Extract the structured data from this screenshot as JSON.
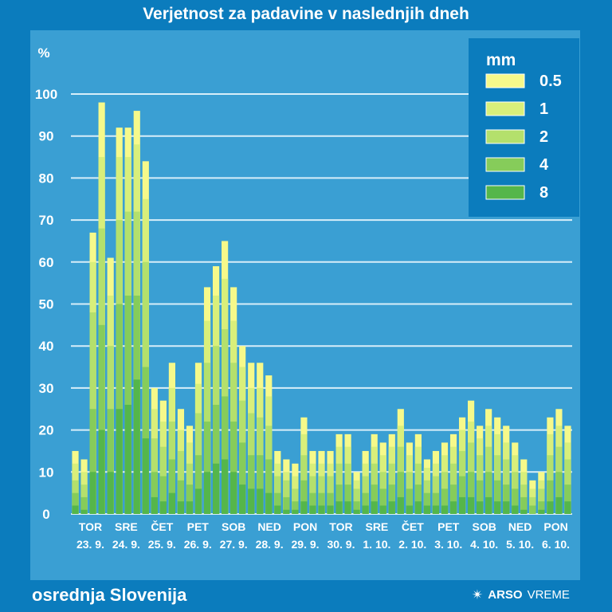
{
  "header": {
    "title": "Verjetnost za padavine v naslednjih dneh"
  },
  "footer": {
    "region": "osrednja Slovenija",
    "brand_bold": "ARSO",
    "brand_light": "VREME",
    "brand_icon": "sun-rays-icon"
  },
  "colors": {
    "background": "#0b7cbd",
    "panel": "#3a9fd3",
    "gridline": "#d7eef9",
    "series": [
      "#f6f98a",
      "#d9ef7a",
      "#b4e06c",
      "#86cc5a",
      "#55b64a"
    ]
  },
  "chart_data": {
    "type": "bar",
    "title": "Verjetnost za padavine v naslednjih dneh",
    "ylabel": "%",
    "ylim": [
      0,
      100
    ],
    "yticks": [
      0,
      10,
      20,
      30,
      40,
      50,
      60,
      70,
      80,
      90,
      100
    ],
    "legend": {
      "title": "mm",
      "position": "top-right",
      "entries": [
        "0.5",
        "1",
        "2",
        "4",
        "8"
      ]
    },
    "days": [
      {
        "name": "TOR",
        "date": "23. 9."
      },
      {
        "name": "SRE",
        "date": "24. 9."
      },
      {
        "name": "ČET",
        "date": "25. 9."
      },
      {
        "name": "PET",
        "date": "26. 9."
      },
      {
        "name": "SOB",
        "date": "27. 9."
      },
      {
        "name": "NED",
        "date": "28. 9."
      },
      {
        "name": "PON",
        "date": "29. 9."
      },
      {
        "name": "TOR",
        "date": "30. 9."
      },
      {
        "name": "SRE",
        "date": "1. 10."
      },
      {
        "name": "ČET",
        "date": "2. 10."
      },
      {
        "name": "PET",
        "date": "3. 10."
      },
      {
        "name": "SOB",
        "date": "4. 10."
      },
      {
        "name": "NED",
        "date": "5. 10."
      },
      {
        "name": "PON",
        "date": "6. 10."
      }
    ],
    "series": [
      {
        "name": "0.5",
        "values": [
          15,
          13,
          67,
          98,
          61,
          92,
          92,
          96,
          84,
          30,
          27,
          36,
          25,
          21,
          36,
          54,
          59,
          65,
          54,
          40,
          36,
          36,
          33,
          15,
          13,
          12,
          23,
          15,
          15,
          15,
          19,
          19,
          10,
          15,
          19,
          17,
          19,
          25,
          17,
          19,
          13,
          15,
          17,
          19,
          23,
          27,
          21,
          25,
          23,
          21,
          17,
          13,
          8,
          10,
          23,
          25,
          21
        ]
      },
      {
        "name": "1",
        "values": [
          12,
          10,
          60,
          85,
          52,
          85,
          85,
          88,
          75,
          25,
          22,
          30,
          20,
          17,
          31,
          46,
          52,
          56,
          46,
          35,
          30,
          30,
          28,
          12,
          10,
          9,
          19,
          12,
          12,
          12,
          16,
          16,
          8,
          12,
          16,
          14,
          16,
          21,
          14,
          16,
          11,
          12,
          14,
          16,
          20,
          22,
          18,
          21,
          19,
          17,
          14,
          10,
          6,
          8,
          19,
          21,
          17
        ]
      },
      {
        "name": "2",
        "values": [
          8,
          7,
          48,
          68,
          40,
          70,
          72,
          72,
          60,
          18,
          16,
          22,
          15,
          12,
          24,
          36,
          40,
          44,
          36,
          27,
          24,
          23,
          21,
          9,
          8,
          6,
          14,
          9,
          9,
          9,
          12,
          12,
          6,
          9,
          12,
          10,
          12,
          16,
          10,
          12,
          8,
          9,
          10,
          12,
          15,
          17,
          14,
          16,
          14,
          13,
          10,
          7,
          4,
          6,
          14,
          16,
          13
        ]
      },
      {
        "name": "4",
        "values": [
          5,
          4,
          25,
          45,
          25,
          50,
          52,
          52,
          35,
          10,
          9,
          13,
          8,
          7,
          14,
          22,
          26,
          28,
          22,
          17,
          14,
          14,
          13,
          5,
          4,
          3,
          8,
          5,
          5,
          5,
          7,
          7,
          3,
          5,
          7,
          6,
          7,
          10,
          6,
          7,
          5,
          5,
          6,
          7,
          9,
          10,
          8,
          10,
          8,
          7,
          6,
          4,
          2,
          3,
          8,
          10,
          7
        ]
      },
      {
        "name": "8",
        "values": [
          2,
          1,
          10,
          20,
          10,
          25,
          26,
          32,
          18,
          4,
          3,
          5,
          3,
          3,
          6,
          10,
          12,
          13,
          10,
          7,
          6,
          6,
          5,
          2,
          1,
          1,
          3,
          2,
          2,
          2,
          3,
          3,
          1,
          2,
          3,
          2,
          3,
          4,
          2,
          3,
          2,
          2,
          2,
          3,
          4,
          4,
          3,
          4,
          3,
          3,
          2,
          1,
          0,
          1,
          3,
          4,
          3
        ]
      }
    ]
  }
}
